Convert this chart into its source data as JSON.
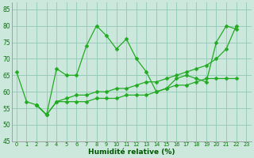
{
  "xlabel": "Humidité relative (%)",
  "background_color": "#cce8dc",
  "grid_color": "#99ccbb",
  "line_color": "#22aa22",
  "ylim": [
    45,
    87
  ],
  "xlim": [
    -0.5,
    23.5
  ],
  "yticks": [
    45,
    50,
    55,
    60,
    65,
    70,
    75,
    80,
    85
  ],
  "xticks": [
    0,
    1,
    2,
    3,
    4,
    5,
    6,
    7,
    8,
    9,
    10,
    11,
    12,
    13,
    14,
    15,
    16,
    17,
    18,
    19,
    20,
    21,
    22,
    23
  ],
  "line1_x": [
    0,
    1,
    2,
    3,
    4,
    5,
    6,
    7,
    8,
    9,
    10,
    11,
    12,
    13,
    14,
    15,
    16,
    17,
    18,
    19,
    20,
    21,
    22
  ],
  "line1_y": [
    66,
    57,
    56,
    53,
    67,
    65,
    65,
    74,
    80,
    77,
    73,
    76,
    70,
    66,
    60,
    61,
    64,
    65,
    64,
    63,
    75,
    80,
    79
  ],
  "line2_x": [
    2,
    3,
    4,
    5,
    6,
    7,
    8,
    9,
    10,
    11,
    12,
    13,
    14,
    15,
    16,
    17,
    18,
    19,
    20,
    21,
    22
  ],
  "line2_y": [
    56,
    53,
    57,
    58,
    59,
    59,
    60,
    60,
    61,
    61,
    62,
    63,
    63,
    64,
    65,
    66,
    67,
    68,
    70,
    73,
    80
  ],
  "line3_x": [
    2,
    3,
    4,
    5,
    6,
    7,
    8,
    9,
    10,
    11,
    12,
    13,
    14,
    15,
    16,
    17,
    18,
    19,
    20,
    21,
    22
  ],
  "line3_y": [
    56,
    53,
    57,
    57,
    57,
    57,
    58,
    58,
    58,
    59,
    59,
    59,
    60,
    61,
    62,
    62,
    63,
    64,
    64,
    64,
    64
  ]
}
